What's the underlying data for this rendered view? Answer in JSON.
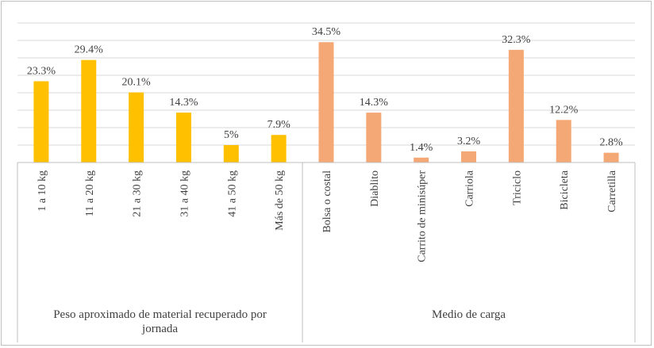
{
  "chart_data": {
    "type": "bar",
    "grid": true,
    "ylim": [
      0,
      40
    ],
    "groups": [
      {
        "label": "Peso aproximado de material recuperado por jornada",
        "label_lines": [
          "Peso aproximado de material recuperado por",
          "jornada"
        ],
        "color": "#ffc000",
        "categories": [
          "1 a 10 kg",
          "11 a 20 kg",
          "21 a 30 kg",
          "31 a 40 kg",
          "41 a 50 kg",
          "Más de 50 kg"
        ],
        "values": [
          23.3,
          29.4,
          20.1,
          14.3,
          5,
          7.9
        ],
        "data_labels": [
          "23.3%",
          "29.4%",
          "20.1%",
          "14.3%",
          "5%",
          "7.9%"
        ]
      },
      {
        "label": "Medio de carga",
        "label_lines": [
          "Medio de carga"
        ],
        "color": "#f4a875",
        "categories": [
          "Bolsa o costal",
          "Diablito",
          "Carrito de minisúper",
          "Carriola",
          "Triciclo",
          "Bicicleta",
          "Carretilla"
        ],
        "values": [
          34.5,
          14.3,
          1.4,
          3.2,
          32.3,
          12.2,
          2.8
        ],
        "data_labels": [
          "34.5%",
          "14.3%",
          "1.4%",
          "3.2%",
          "32.3%",
          "12.2%",
          "2.8%"
        ]
      }
    ]
  }
}
